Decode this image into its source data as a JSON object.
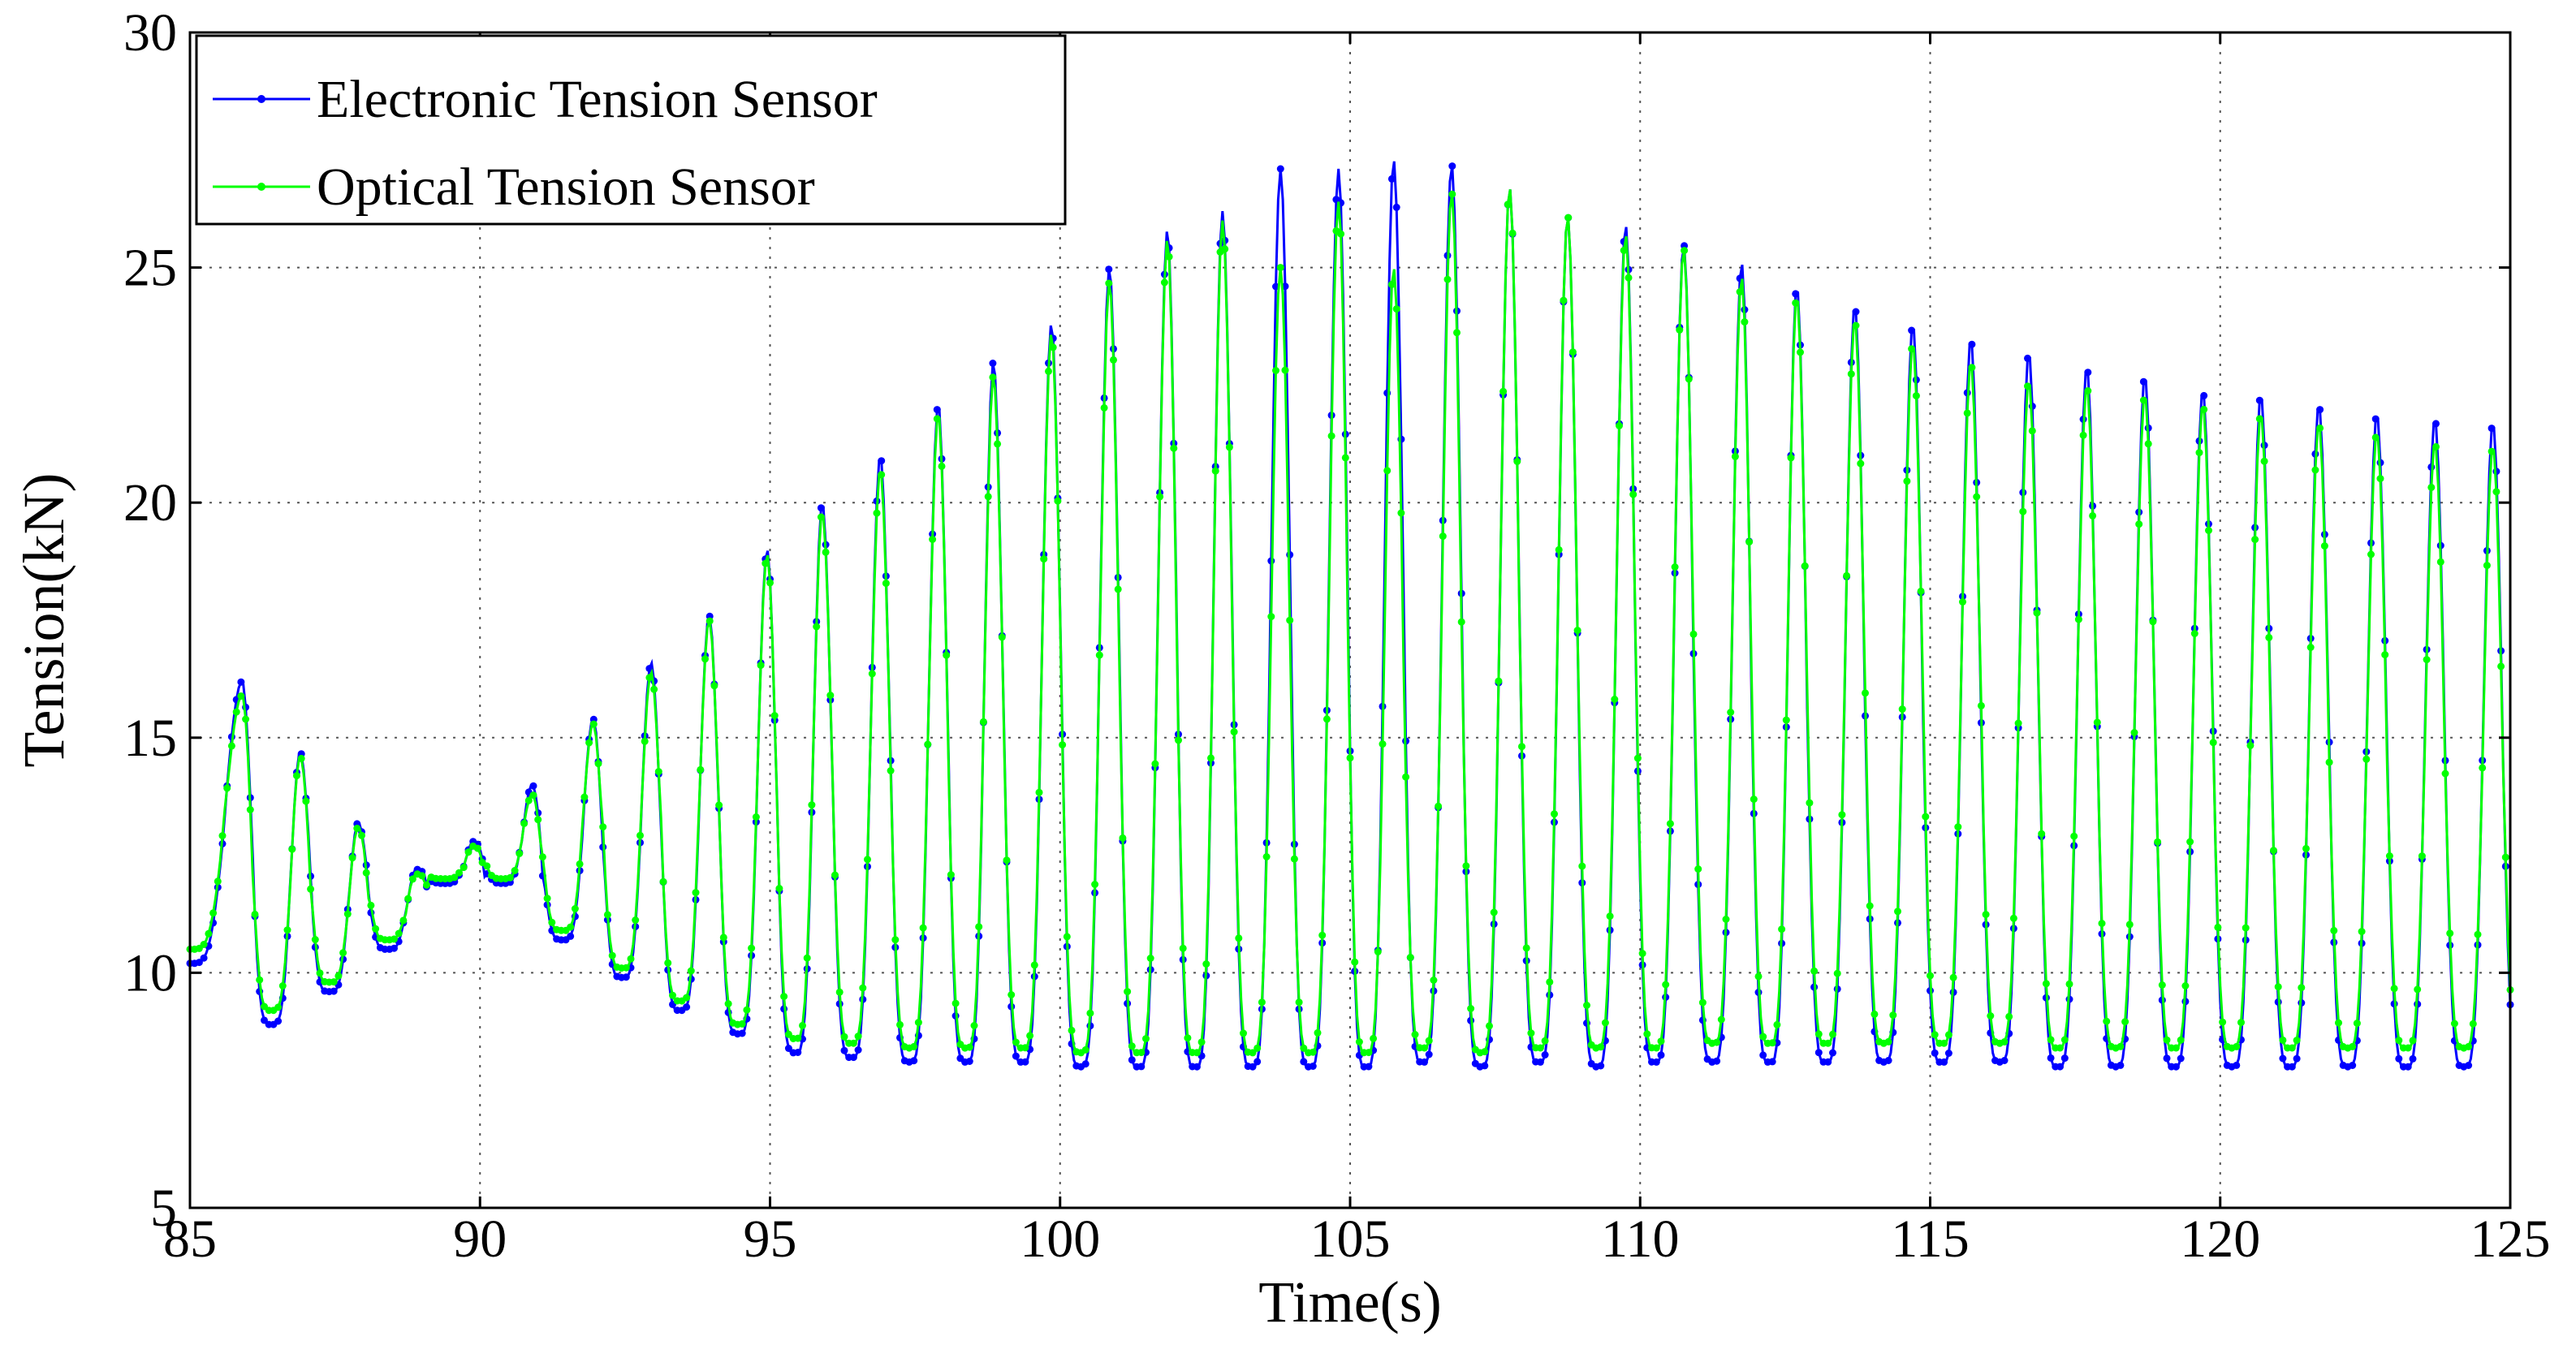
{
  "chart_data": {
    "type": "line",
    "title": "",
    "xlabel": "Time(s)",
    "ylabel": "Tension(kN)",
    "xlim": [
      85,
      125
    ],
    "ylim": [
      5,
      30
    ],
    "xticks": [
      85,
      90,
      95,
      100,
      105,
      110,
      115,
      120,
      125
    ],
    "yticks": [
      5,
      10,
      15,
      20,
      25,
      30
    ],
    "grid": true,
    "legend_position": "top-left",
    "oscillation_period_s": 1.0,
    "series": [
      {
        "name": "Electronic Tension Sensor",
        "color": "#0000ff",
        "marker": "dot",
        "peak_times": [
          85.9,
          86.9,
          87.9,
          88.9,
          89.9,
          90.9,
          91.95,
          92.95,
          93.95,
          94.95,
          95.9,
          96.9,
          97.9,
          98.85,
          99.85,
          100.85,
          101.85,
          102.8,
          103.8,
          104.8,
          105.75,
          106.75,
          107.75,
          108.75,
          109.75,
          110.75,
          111.75,
          112.7,
          113.7,
          114.7,
          115.7,
          116.7,
          117.7,
          118.7,
          119.7,
          120.7,
          121.7,
          122.7,
          123.7,
          124.7
        ],
        "peak_values": [
          16.2,
          14.7,
          13.2,
          12.2,
          12.8,
          14.0,
          15.4,
          16.6,
          17.6,
          19.0,
          20.0,
          21.0,
          22.1,
          23.0,
          23.8,
          25.0,
          25.8,
          26.2,
          27.1,
          27.1,
          27.3,
          27.2,
          26.7,
          26.1,
          25.9,
          25.5,
          25.1,
          24.6,
          24.2,
          23.8,
          23.5,
          23.2,
          22.9,
          22.7,
          22.4,
          22.3,
          22.1,
          21.9,
          21.8,
          21.7
        ],
        "trough_values": [
          8.9,
          9.6,
          10.5,
          11.9,
          11.9,
          10.7,
          9.9,
          9.2,
          8.7,
          8.3,
          8.2,
          8.1,
          8.1,
          8.1,
          8.0,
          8.0,
          8.0,
          8.0,
          8.0,
          8.0,
          8.1,
          8.0,
          8.1,
          8.0,
          8.1,
          8.1,
          8.1,
          8.1,
          8.1,
          8.1,
          8.1,
          8.0,
          8.0,
          8.0,
          8.0,
          8.0,
          8.0,
          8.0,
          8.0,
          8.0
        ]
      },
      {
        "name": "Optical Tension Sensor",
        "color": "#00ff00",
        "marker": "dot",
        "peak_times": [
          85.9,
          86.9,
          87.9,
          88.9,
          89.9,
          90.9,
          91.95,
          92.95,
          93.95,
          94.95,
          95.9,
          96.9,
          97.9,
          98.85,
          99.85,
          100.85,
          101.85,
          102.8,
          103.8,
          104.8,
          105.75,
          106.75,
          107.75,
          108.75,
          109.75,
          110.75,
          111.75,
          112.7,
          113.7,
          114.7,
          115.7,
          116.7,
          117.7,
          118.7,
          119.7,
          120.7,
          121.7,
          122.7,
          123.7,
          124.7
        ],
        "peak_values": [
          15.9,
          14.6,
          13.1,
          12.1,
          12.7,
          13.8,
          15.3,
          16.4,
          17.5,
          18.9,
          19.8,
          20.7,
          21.9,
          22.7,
          23.6,
          24.7,
          25.6,
          26.0,
          25.0,
          26.4,
          25.0,
          26.6,
          26.7,
          26.1,
          25.7,
          25.4,
          24.8,
          24.4,
          23.9,
          23.4,
          23.0,
          22.6,
          22.5,
          22.3,
          22.1,
          21.9,
          21.7,
          21.5,
          21.3,
          21.2
        ],
        "trough_values": [
          9.2,
          9.8,
          10.7,
          12.0,
          12.0,
          10.9,
          10.1,
          9.4,
          8.9,
          8.6,
          8.5,
          8.4,
          8.4,
          8.4,
          8.3,
          8.3,
          8.3,
          8.3,
          8.3,
          8.3,
          8.4,
          8.3,
          8.4,
          8.4,
          8.4,
          8.5,
          8.5,
          8.5,
          8.5,
          8.5,
          8.5,
          8.4,
          8.4,
          8.4,
          8.4,
          8.4,
          8.4,
          8.4,
          8.4,
          8.4
        ]
      }
    ]
  }
}
